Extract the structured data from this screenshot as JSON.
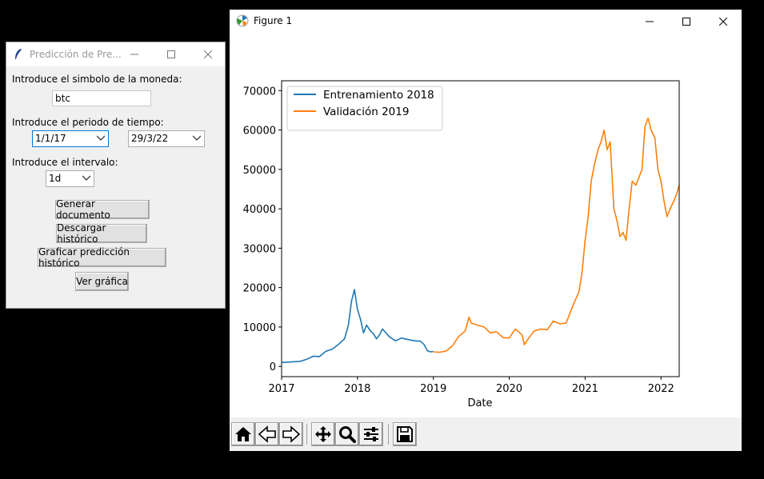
{
  "tk_window": {
    "title": "Predicción de Pre...",
    "label_symbol": "Introduce el simbolo de la moneda:",
    "symbol_value": "btc",
    "label_period": "Introduce el periodo de tiempo:",
    "period_start": "1/1/17",
    "period_end": "29/3/22",
    "label_interval": "Introduce el intervalo:",
    "interval_value": "1d",
    "buttons": {
      "generate": "Generar documento",
      "download": "Descargar histórico",
      "plot_prediction": "Graficar predicción histórico",
      "view_chart": "Ver gráfica"
    }
  },
  "figure_window": {
    "title": "Figure 1",
    "toolbar_icons": [
      "home-icon",
      "back-icon",
      "forward-icon",
      "pan-icon",
      "zoom-icon",
      "configure-subplots-icon",
      "save-icon"
    ]
  },
  "chart_data": {
    "type": "line",
    "xlabel": "Date",
    "ylabel": "",
    "title": "",
    "x_ticks": [
      "2017",
      "2018",
      "2019",
      "2020",
      "2021",
      "2022"
    ],
    "y_ticks": [
      "0",
      "10000",
      "20000",
      "30000",
      "40000",
      "50000",
      "60000",
      "70000"
    ],
    "ylim": [
      -2600,
      72500
    ],
    "xlim": [
      2017.0,
      2022.24
    ],
    "legend_position": "top-left",
    "grid": false,
    "series": [
      {
        "name": "Entrenamiento 2018",
        "color": "#1f77b4",
        "x": [
          2017.0,
          2017.08,
          2017.17,
          2017.25,
          2017.33,
          2017.42,
          2017.5,
          2017.58,
          2017.67,
          2017.75,
          2017.83,
          2017.88,
          2017.92,
          2017.96,
          2018.0,
          2018.04,
          2018.08,
          2018.12,
          2018.17,
          2018.21,
          2018.25,
          2018.29,
          2018.33,
          2018.42,
          2018.5,
          2018.58,
          2018.67,
          2018.75,
          2018.83,
          2018.88,
          2018.92,
          2018.96,
          2019.0
        ],
        "y": [
          1000,
          1100,
          1200,
          1300,
          1800,
          2600,
          2500,
          3800,
          4400,
          5600,
          7000,
          10500,
          16500,
          19500,
          14500,
          12000,
          8500,
          10500,
          9000,
          8300,
          7000,
          8000,
          9500,
          7500,
          6500,
          7200,
          6800,
          6500,
          6400,
          5500,
          4000,
          3700,
          3800
        ]
      },
      {
        "name": "Validación 2019",
        "color": "#ff7f0e",
        "x": [
          2019.0,
          2019.08,
          2019.17,
          2019.25,
          2019.33,
          2019.42,
          2019.47,
          2019.5,
          2019.58,
          2019.67,
          2019.75,
          2019.83,
          2019.92,
          2020.0,
          2020.08,
          2020.17,
          2020.2,
          2020.25,
          2020.33,
          2020.42,
          2020.5,
          2020.58,
          2020.67,
          2020.75,
          2020.83,
          2020.92,
          2020.96,
          2021.0,
          2021.04,
          2021.08,
          2021.12,
          2021.17,
          2021.21,
          2021.25,
          2021.29,
          2021.33,
          2021.38,
          2021.42,
          2021.46,
          2021.5,
          2021.54,
          2021.58,
          2021.62,
          2021.67,
          2021.71,
          2021.75,
          2021.79,
          2021.83,
          2021.87,
          2021.92,
          2021.96,
          2022.0,
          2022.04,
          2022.08,
          2022.12,
          2022.17,
          2022.21,
          2022.24
        ],
        "y": [
          3700,
          3600,
          3900,
          5200,
          7500,
          9000,
          12500,
          11000,
          10500,
          10000,
          8500,
          8800,
          7300,
          7200,
          9500,
          8000,
          5500,
          7000,
          9000,
          9500,
          9300,
          11500,
          10800,
          11000,
          15000,
          19000,
          24000,
          32000,
          38000,
          47000,
          51000,
          55000,
          57000,
          60000,
          55000,
          57000,
          40000,
          37000,
          33000,
          34000,
          32000,
          40000,
          47000,
          46000,
          48000,
          50000,
          61000,
          63000,
          60000,
          58000,
          50000,
          47000,
          42000,
          38000,
          40000,
          42000,
          44000,
          46000
        ]
      }
    ]
  }
}
